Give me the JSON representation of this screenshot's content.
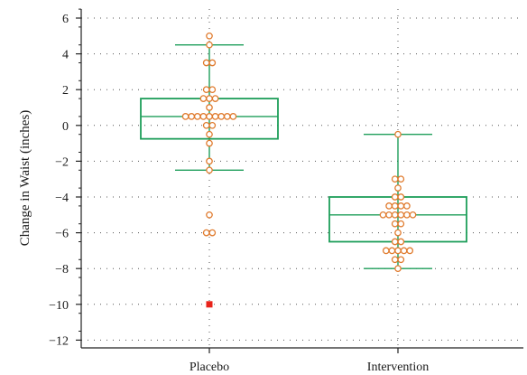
{
  "chart_data": {
    "type": "box",
    "title": "",
    "xlabel": "",
    "ylabel": "Change in Waist (inches)",
    "ylim": [
      -12.5,
      6.5
    ],
    "yticks": [
      6,
      4,
      2,
      0,
      -2,
      -4,
      -6,
      -8,
      -10,
      -12
    ],
    "ytick_labels": [
      "6",
      "4",
      "2",
      "0",
      "−2",
      "−4",
      "−6",
      "−8",
      "−10",
      "−12"
    ],
    "categories": [
      "Placebo",
      "Intervention"
    ],
    "grid": true,
    "colors": {
      "box": "#1e9e5a",
      "point": "#e07b2e",
      "outlier": "#e8231a",
      "axis": "#222222"
    },
    "groups": [
      {
        "name": "Placebo",
        "q1": -0.75,
        "median": 0.5,
        "q3": 1.5,
        "whisker_low": -2.5,
        "whisker_high": 4.5,
        "points": [
          5.0,
          4.5,
          3.5,
          3.5,
          2.0,
          2.0,
          1.5,
          1.5,
          1.5,
          1.0,
          0.5,
          0.5,
          0.5,
          0.5,
          0.5,
          0.5,
          0.5,
          0.5,
          0.5,
          0.0,
          0.0,
          -0.5,
          -1.0,
          -2.0,
          -2.5,
          -5.0,
          -6.0,
          -6.0
        ],
        "outliers": [
          -10.0
        ]
      },
      {
        "name": "Intervention",
        "q1": -6.5,
        "median": -5.0,
        "q3": -4.0,
        "whisker_low": -8.0,
        "whisker_high": -0.5,
        "points": [
          -0.5,
          -3.0,
          -3.0,
          -3.5,
          -4.0,
          -4.0,
          -4.5,
          -4.5,
          -4.5,
          -4.5,
          -5.0,
          -5.0,
          -5.0,
          -5.0,
          -5.0,
          -5.0,
          -5.5,
          -5.5,
          -6.0,
          -6.5,
          -6.5,
          -7.0,
          -7.0,
          -7.0,
          -7.0,
          -7.0,
          -7.5,
          -7.5,
          -8.0
        ],
        "outliers": []
      }
    ]
  }
}
